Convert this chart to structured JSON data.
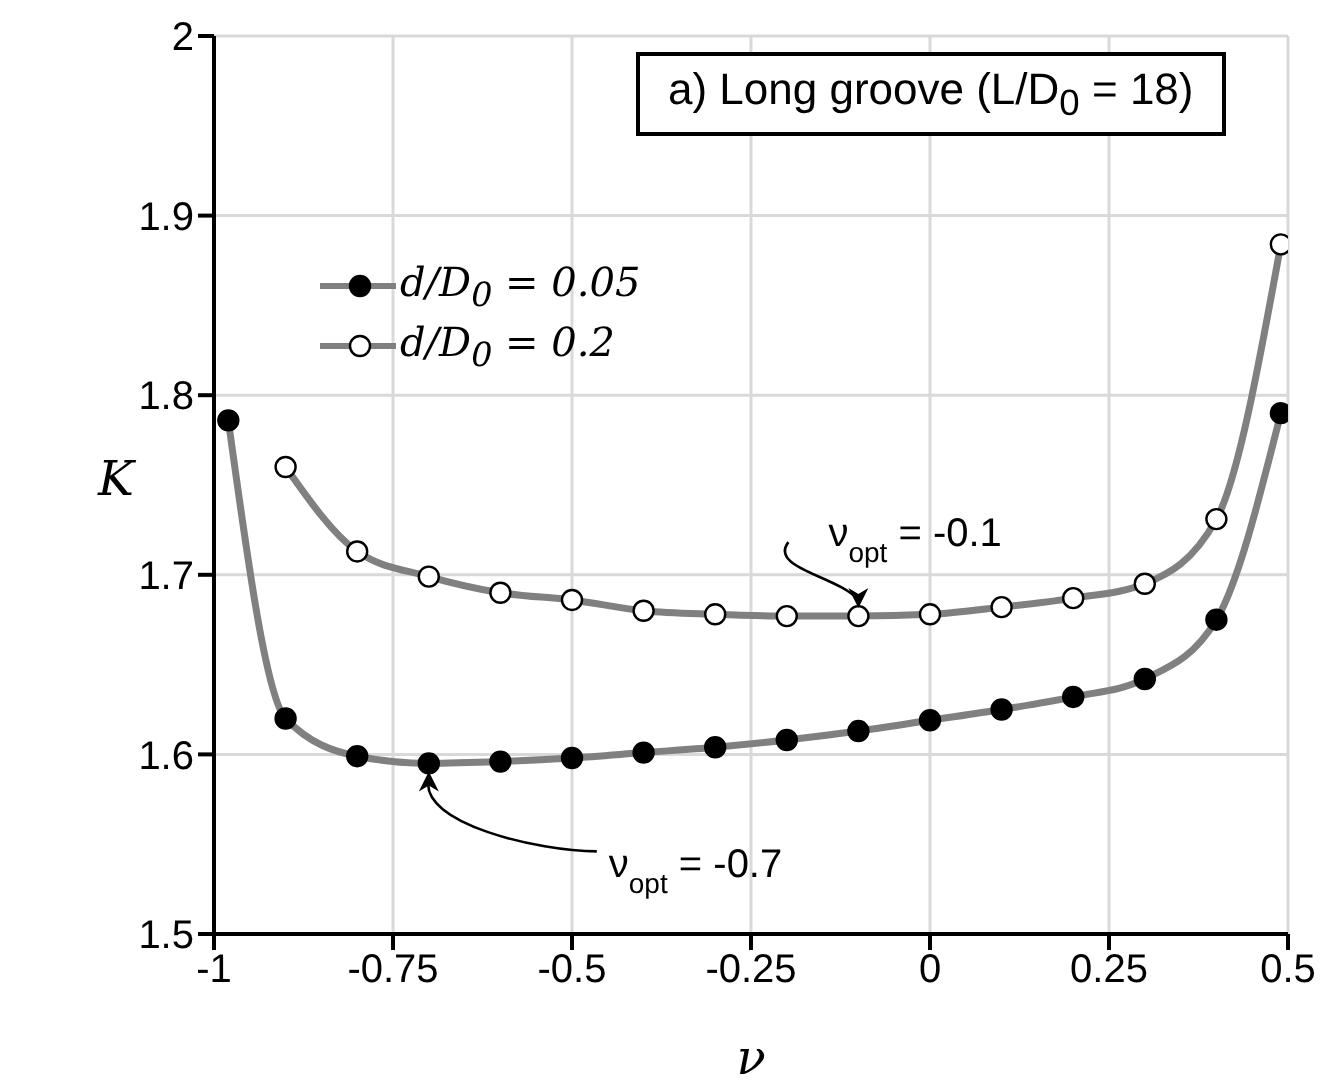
{
  "chart_data": {
    "type": "line",
    "title": "a) Long groove (L/D$_{0}$ = 18)",
    "xlabel": "ν",
    "ylabel": "K",
    "x": [
      -0.98,
      -0.9,
      -0.8,
      -0.7,
      -0.6,
      -0.5,
      -0.4,
      -0.3,
      -0.2,
      -0.1,
      0,
      0.1,
      0.2,
      0.3,
      0.4,
      0.49
    ],
    "series": [
      {
        "name": "d/D$_{0}$ = 0.05",
        "color": "#808080",
        "values": [
          1.786,
          1.62,
          1.599,
          1.595,
          1.596,
          1.598,
          1.601,
          1.604,
          1.608,
          1.613,
          1.619,
          1.625,
          1.632,
          1.642,
          1.675,
          1.79
        ]
      },
      {
        "name": "d/D$_{0}$ = 0.2",
        "color": "#808080",
        "values": [
          null,
          1.76,
          1.713,
          1.699,
          1.69,
          1.686,
          1.68,
          1.678,
          1.677,
          1.677,
          1.678,
          1.682,
          1.687,
          1.695,
          1.731,
          1.884
        ]
      }
    ],
    "xlim": [
      -1,
      0.5
    ],
    "xticks": [
      -1,
      -0.75,
      -0.5,
      -0.25,
      0,
      0.25,
      0.5
    ],
    "ylim": [
      1.5,
      2
    ],
    "yticks": [
      1.5,
      1.6,
      1.7,
      1.8,
      1.9,
      2
    ],
    "grid": true,
    "legend": "top left",
    "marker": "circle",
    "annotations": [
      {
        "text": "ν$_{opt}$ = -0.7",
        "x": -0.7,
        "y": 1.595
      },
      {
        "text": "ν$_{opt}$ = -0.1",
        "x": -0.1,
        "y": 1.677
      }
    ]
  }
}
